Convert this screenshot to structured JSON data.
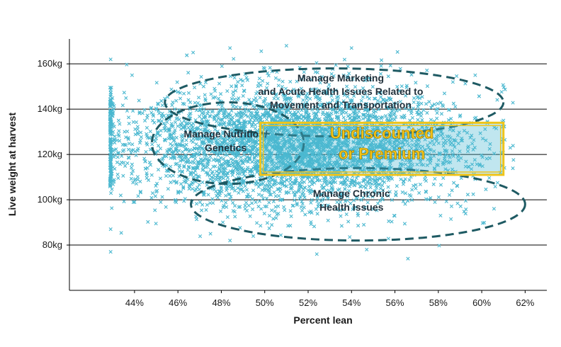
{
  "colors": {
    "points": "#4bb8d0",
    "ellipse": "#1e5a63",
    "premium_box": "#f0c419",
    "premium_text": "#f5c518",
    "gridline": "#000000"
  },
  "chart_data": {
    "type": "scatter",
    "xlabel": "Percent lean",
    "ylabel": "Live weight at harvest",
    "xlim": [
      41.0,
      63.0
    ],
    "ylim": [
      60,
      171
    ],
    "x_ticks": [
      {
        "value": 44,
        "label": "44%"
      },
      {
        "value": 46,
        "label": "46%"
      },
      {
        "value": 48,
        "label": "48%"
      },
      {
        "value": 50,
        "label": "50%"
      },
      {
        "value": 52,
        "label": "52%"
      },
      {
        "value": 54,
        "label": "54%"
      },
      {
        "value": 56,
        "label": "56%"
      },
      {
        "value": 58,
        "label": "58%"
      },
      {
        "value": 60,
        "label": "60%"
      },
      {
        "value": 62,
        "label": "62%"
      }
    ],
    "y_ticks": [
      {
        "value": 80,
        "label": "80kg"
      },
      {
        "value": 100,
        "label": "100kg"
      },
      {
        "value": 120,
        "label": "120kg"
      },
      {
        "value": 140,
        "label": "140kg"
      },
      {
        "value": 160,
        "label": "160kg"
      }
    ],
    "grid": {
      "horizontal": true,
      "vertical": false
    },
    "point_cloud": {
      "center_x": 51.5,
      "center_y": 123,
      "spread_x": 3.8,
      "spread_y": 13,
      "min_x": 42.9,
      "max_x": 61.5,
      "outliers": [
        {
          "x": 42.9,
          "y": 87
        },
        {
          "x": 42.9,
          "y": 77
        },
        {
          "x": 42.9,
          "y": 162
        },
        {
          "x": 52.4,
          "y": 76
        },
        {
          "x": 56.6,
          "y": 74
        },
        {
          "x": 54.7,
          "y": 78
        },
        {
          "x": 48.4,
          "y": 167
        },
        {
          "x": 46.7,
          "y": 165
        },
        {
          "x": 51.0,
          "y": 168
        },
        {
          "x": 61.0,
          "y": 135
        },
        {
          "x": 54.0,
          "y": 167
        },
        {
          "x": 59.7,
          "y": 155
        },
        {
          "x": 44.0,
          "y": 99
        },
        {
          "x": 48.4,
          "y": 82
        },
        {
          "x": 47.5,
          "y": 85
        }
      ]
    },
    "zones": [
      {
        "name": "marketing",
        "lines": [
          "Manage Marketing",
          "and Acute Health Issues Related to",
          "Movement and Transportation"
        ],
        "ellipse": {
          "cx": 53.2,
          "cy": 143,
          "rx": 7.8,
          "ry": 15
        },
        "label_x": 53.5,
        "label_y": [
          152.3,
          146.3,
          140.3
        ]
      },
      {
        "name": "nutrition",
        "lines": [
          "Manage Nutrition/",
          "Genetics"
        ],
        "ellipse": {
          "cx": 48.3,
          "cy": 125,
          "rx": 3.5,
          "ry": 18
        },
        "label_x": 48.2,
        "label_y": [
          127.5,
          121.5
        ]
      },
      {
        "name": "chronic",
        "lines": [
          "Manage Chronic",
          "Health Issues"
        ],
        "ellipse": {
          "cx": 54.3,
          "cy": 98,
          "rx": 7.7,
          "ry": 16
        },
        "label_x": 54.0,
        "label_y": [
          101.2,
          95.2
        ]
      }
    ],
    "premium_zone": {
      "lines": [
        "Undiscounted",
        "or Premium"
      ],
      "x_range": [
        49.8,
        61.0
      ],
      "y_range": [
        111,
        134
      ],
      "label_x": 55.4,
      "label_y": [
        127,
        118
      ]
    }
  }
}
